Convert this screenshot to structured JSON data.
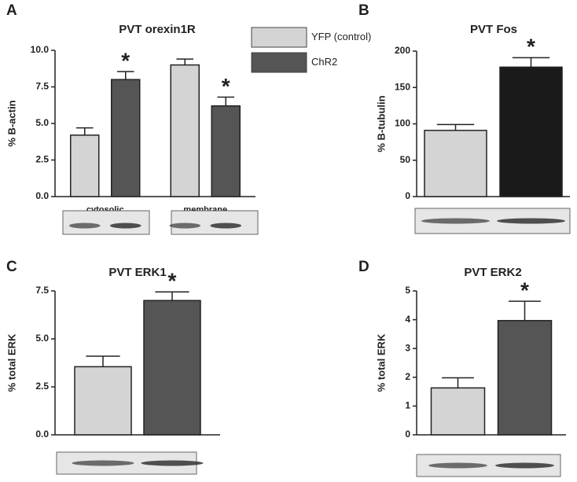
{
  "chart_data": [
    {
      "type": "bar",
      "panel": "A",
      "title": "PVT orexin1R",
      "ylabel": "% B-actin",
      "categories": [
        "cytosolic",
        "membrane"
      ],
      "series": [
        {
          "name": "YFP (control)",
          "color": "#d4d4d4",
          "values": [
            4.2,
            9.0
          ],
          "errors": [
            0.5,
            0.4
          ]
        },
        {
          "name": "ChR2",
          "color": "#555555",
          "values": [
            8.0,
            6.2
          ],
          "errors": [
            0.55,
            0.6
          ],
          "significance": [
            "*",
            "*"
          ]
        }
      ],
      "ylim": [
        0,
        10
      ],
      "yticks": [
        {
          "value": 0,
          "label": "0.0"
        },
        {
          "value": 2.5,
          "label": "2.5"
        },
        {
          "value": 5,
          "label": "5.0"
        },
        {
          "value": 7.5,
          "label": "7.5"
        },
        {
          "value": 10,
          "label": "10.0"
        }
      ],
      "legend": "top-right"
    },
    {
      "type": "bar",
      "panel": "B",
      "title": "PVT Fos",
      "ylabel": "% B-tubulin",
      "categories": [
        null
      ],
      "series": [
        {
          "color": "#d4d4d4",
          "values": [
            91
          ],
          "errors": [
            8
          ]
        },
        {
          "color": "#1a1a1a",
          "values": [
            178
          ],
          "errors": [
            13
          ],
          "significance": [
            "*"
          ]
        }
      ],
      "ylim": [
        0,
        200
      ],
      "yticks": [
        0,
        50,
        100,
        150,
        200
      ]
    },
    {
      "type": "bar",
      "panel": "C",
      "title": "PVT ERK1",
      "ylabel": "% total ERK",
      "categories": [
        null
      ],
      "series": [
        {
          "color": "#d4d4d4",
          "values": [
            3.55
          ],
          "errors": [
            0.55
          ]
        },
        {
          "color": "#555555",
          "values": [
            7.0
          ],
          "errors": [
            0.45
          ],
          "significance": [
            "*"
          ]
        }
      ],
      "ylim": [
        0,
        7.5
      ],
      "yticks": [
        {
          "value": 0,
          "label": "0.0"
        },
        {
          "value": 2.5,
          "label": "2.5"
        },
        {
          "value": 5,
          "label": "5.0"
        },
        {
          "value": 7.5,
          "label": "7.5"
        }
      ]
    },
    {
      "type": "bar",
      "panel": "D",
      "title": "PVT ERK2",
      "ylabel": "% total ERK",
      "categories": [
        null
      ],
      "series": [
        {
          "color": "#d4d4d4",
          "values": [
            1.63
          ],
          "errors": [
            0.35
          ]
        },
        {
          "color": "#555555",
          "values": [
            3.97
          ],
          "errors": [
            0.67
          ],
          "significance": [
            "*"
          ]
        }
      ],
      "ylim": [
        0,
        5
      ],
      "yticks": [
        0,
        1,
        2,
        3,
        4,
        5
      ]
    }
  ]
}
